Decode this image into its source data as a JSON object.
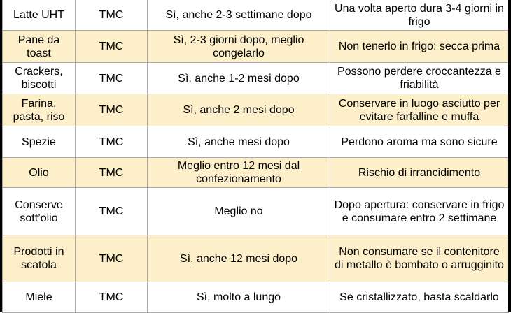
{
  "colors": {
    "alt_row": "#fcefc9",
    "border": "#a9a9a9",
    "frame": "#000000"
  },
  "rows": [
    [
      "Latte UHT",
      "TMC",
      "Sì, anche 2-3 settimane dopo",
      "Una volta aperto dura 3-4 giorni in frigo"
    ],
    [
      "Pane da toast",
      "TMC",
      "Sì, 2-3 giorni dopo, meglio congelarlo",
      "Non tenerlo in frigo: secca prima"
    ],
    [
      "Crackers, biscotti",
      "TMC",
      "Sì, anche 1-2 mesi dopo",
      "Possono perdere croccantezza e friabilità"
    ],
    [
      "Farina, pasta, riso",
      "TMC",
      "Sì, anche 2 mesi dopo",
      "Conservare in luogo asciutto per evitare farfalline e muffa"
    ],
    [
      "Spezie",
      "TMC",
      "Sì, anche mesi dopo",
      "Perdono aroma ma sono sicure"
    ],
    [
      "Olio",
      "TMC",
      "Meglio entro 12 mesi dal confezionamento",
      "Rischio di irrancidimento"
    ],
    [
      "Conserve sott’olio",
      "TMC",
      "Meglio no",
      "Dopo apertura: conservare in frigo e consumare entro 2 settimane"
    ],
    [
      "Prodotti in scatola",
      "TMC",
      "Sì, anche 12 mesi dopo",
      "Non consumare se il contenitore di metallo è bombato o arrugginito"
    ],
    [
      "Miele",
      "TMC",
      "Sì, molto a lungo",
      "Se cristallizzato, basta scaldarlo"
    ]
  ]
}
